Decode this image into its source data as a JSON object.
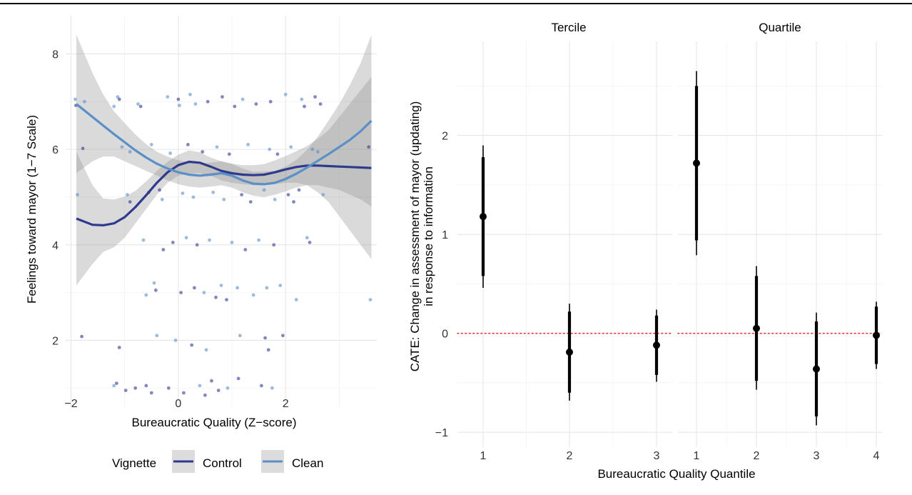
{
  "chart_data": [
    {
      "type": "scatter",
      "title": "",
      "xlabel": "Bureaucratic Quality (Z−score)",
      "ylabel": "Feelings toward mayor (1−7 Scale)",
      "xlim": [
        -2.1,
        3.7
      ],
      "ylim": [
        0.6,
        8.8
      ],
      "x_ticks": [
        {
          "v": -2,
          "label": "−2"
        },
        {
          "v": 0,
          "label": "0"
        },
        {
          "v": 2,
          "label": "2"
        }
      ],
      "y_ticks": [
        {
          "v": 2,
          "label": "2"
        },
        {
          "v": 4,
          "label": "4"
        },
        {
          "v": 6,
          "label": "6"
        },
        {
          "v": 8,
          "label": "8"
        }
      ],
      "grid": true,
      "legend": {
        "title": "Vignette",
        "position": "bottom",
        "entries": [
          {
            "name": "Control",
            "color": "#2e3a8c"
          },
          {
            "name": "Clean",
            "color": "#5b8fc7"
          }
        ]
      },
      "jitter_points": [
        {
          "x": -1.92,
          "y": 7.05
        },
        {
          "x": -1.91,
          "y": 6.92
        },
        {
          "x": -1.88,
          "y": 5.05
        },
        {
          "x": -1.78,
          "y": 6.02
        },
        {
          "x": -1.75,
          "y": 7.0
        },
        {
          "x": -1.8,
          "y": 2.08
        },
        {
          "x": -1.2,
          "y": 1.05
        },
        {
          "x": -1.15,
          "y": 1.1
        },
        {
          "x": -1.13,
          "y": 7.1
        },
        {
          "x": -1.1,
          "y": 7.05
        },
        {
          "x": -1.2,
          "y": 6.9
        },
        {
          "x": -1.1,
          "y": 1.85
        },
        {
          "x": -1.05,
          "y": 6.05
        },
        {
          "x": -0.98,
          "y": 0.95
        },
        {
          "x": -0.95,
          "y": 5.05
        },
        {
          "x": -0.9,
          "y": 4.9
        },
        {
          "x": -0.9,
          "y": 5.95
        },
        {
          "x": -0.8,
          "y": 1.0
        },
        {
          "x": -0.75,
          "y": 6.95
        },
        {
          "x": -0.7,
          "y": 6.9
        },
        {
          "x": -0.65,
          "y": 4.1
        },
        {
          "x": -0.6,
          "y": 1.05
        },
        {
          "x": -0.6,
          "y": 2.95
        },
        {
          "x": -0.55,
          "y": 5.1
        },
        {
          "x": -0.5,
          "y": 6.1
        },
        {
          "x": -0.5,
          "y": 0.9
        },
        {
          "x": -0.45,
          "y": 3.2
        },
        {
          "x": -0.42,
          "y": 3.05
        },
        {
          "x": -0.4,
          "y": 2.1
        },
        {
          "x": -0.35,
          "y": 5.15
        },
        {
          "x": -0.3,
          "y": 4.95
        },
        {
          "x": -0.28,
          "y": 3.9
        },
        {
          "x": -0.2,
          "y": 7.1
        },
        {
          "x": -0.18,
          "y": 1.0
        },
        {
          "x": -0.15,
          "y": 5.92
        },
        {
          "x": -0.1,
          "y": 4.05
        },
        {
          "x": -0.05,
          "y": 2.0
        },
        {
          "x": 0.0,
          "y": 7.05
        },
        {
          "x": 0.02,
          "y": 6.92
        },
        {
          "x": 0.05,
          "y": 3.0
        },
        {
          "x": 0.08,
          "y": 5.08
        },
        {
          "x": 0.1,
          "y": 0.9
        },
        {
          "x": 0.15,
          "y": 4.15
        },
        {
          "x": 0.18,
          "y": 6.1
        },
        {
          "x": 0.22,
          "y": 7.15
        },
        {
          "x": 0.25,
          "y": 1.9
        },
        {
          "x": 0.28,
          "y": 5.0
        },
        {
          "x": 0.3,
          "y": 3.1
        },
        {
          "x": 0.32,
          "y": 6.95
        },
        {
          "x": 0.35,
          "y": 4.0
        },
        {
          "x": 0.4,
          "y": 1.05
        },
        {
          "x": 0.45,
          "y": 5.95
        },
        {
          "x": 0.48,
          "y": 3.0
        },
        {
          "x": 0.5,
          "y": 0.85
        },
        {
          "x": 0.52,
          "y": 1.8
        },
        {
          "x": 0.55,
          "y": 7.0
        },
        {
          "x": 0.58,
          "y": 4.1
        },
        {
          "x": 0.62,
          "y": 1.15
        },
        {
          "x": 0.65,
          "y": 5.1
        },
        {
          "x": 0.7,
          "y": 2.9
        },
        {
          "x": 0.72,
          "y": 6.05
        },
        {
          "x": 0.75,
          "y": 0.95
        },
        {
          "x": 0.8,
          "y": 3.15
        },
        {
          "x": 0.82,
          "y": 7.1
        },
        {
          "x": 0.85,
          "y": 4.95
        },
        {
          "x": 0.9,
          "y": 2.85
        },
        {
          "x": 0.92,
          "y": 1.0
        },
        {
          "x": 0.95,
          "y": 5.9
        },
        {
          "x": 1.0,
          "y": 4.05
        },
        {
          "x": 1.05,
          "y": 6.9
        },
        {
          "x": 1.1,
          "y": 3.1
        },
        {
          "x": 1.12,
          "y": 1.2
        },
        {
          "x": 1.15,
          "y": 2.1
        },
        {
          "x": 1.18,
          "y": 5.05
        },
        {
          "x": 1.2,
          "y": 7.05
        },
        {
          "x": 1.25,
          "y": 3.9
        },
        {
          "x": 1.3,
          "y": 6.1
        },
        {
          "x": 1.35,
          "y": 4.9
        },
        {
          "x": 1.4,
          "y": 2.95
        },
        {
          "x": 1.45,
          "y": 6.95
        },
        {
          "x": 1.5,
          "y": 4.1
        },
        {
          "x": 1.55,
          "y": 1.05
        },
        {
          "x": 1.6,
          "y": 5.15
        },
        {
          "x": 1.62,
          "y": 2.05
        },
        {
          "x": 1.65,
          "y": 3.1
        },
        {
          "x": 1.68,
          "y": 1.8
        },
        {
          "x": 1.7,
          "y": 6.0
        },
        {
          "x": 1.72,
          "y": 7.0
        },
        {
          "x": 1.75,
          "y": 1.0
        },
        {
          "x": 1.78,
          "y": 4.0
        },
        {
          "x": 1.8,
          "y": 4.95
        },
        {
          "x": 1.85,
          "y": 5.9
        },
        {
          "x": 1.9,
          "y": 3.15
        },
        {
          "x": 1.95,
          "y": 2.1
        },
        {
          "x": 2.0,
          "y": 7.15
        },
        {
          "x": 2.05,
          "y": 5.05
        },
        {
          "x": 2.1,
          "y": 6.05
        },
        {
          "x": 2.15,
          "y": 4.9
        },
        {
          "x": 2.2,
          "y": 2.85
        },
        {
          "x": 2.25,
          "y": 5.15
        },
        {
          "x": 2.3,
          "y": 7.05
        },
        {
          "x": 2.35,
          "y": 6.9
        },
        {
          "x": 2.4,
          "y": 4.15
        },
        {
          "x": 2.45,
          "y": 4.05
        },
        {
          "x": 2.5,
          "y": 6.0
        },
        {
          "x": 2.55,
          "y": 7.1
        },
        {
          "x": 2.6,
          "y": 5.95
        },
        {
          "x": 2.65,
          "y": 6.95
        },
        {
          "x": 2.7,
          "y": 5.05
        },
        {
          "x": 3.55,
          "y": 6.05
        },
        {
          "x": 3.58,
          "y": 2.85
        }
      ],
      "series": [
        {
          "name": "Control",
          "x": [
            -1.9,
            -1.6,
            -1.4,
            -1.2,
            -1.0,
            -0.8,
            -0.6,
            -0.4,
            -0.2,
            0.0,
            0.2,
            0.4,
            0.6,
            0.8,
            1.0,
            1.2,
            1.4,
            1.6,
            1.8,
            2.0,
            2.2,
            2.4,
            2.6,
            2.8,
            3.0,
            3.2,
            3.4,
            3.6
          ],
          "y": [
            4.55,
            4.42,
            4.41,
            4.45,
            4.58,
            4.79,
            5.04,
            5.3,
            5.52,
            5.67,
            5.74,
            5.72,
            5.64,
            5.55,
            5.5,
            5.47,
            5.46,
            5.47,
            5.52,
            5.58,
            5.63,
            5.66,
            5.66,
            5.65,
            5.64,
            5.63,
            5.62,
            5.61
          ],
          "ci_low": [
            3.15,
            3.6,
            3.85,
            3.95,
            4.15,
            4.45,
            4.75,
            5.05,
            5.3,
            5.45,
            5.5,
            5.5,
            5.45,
            5.35,
            5.3,
            5.27,
            5.25,
            5.25,
            5.27,
            5.3,
            5.3,
            5.25,
            5.1,
            4.9,
            4.6,
            4.3,
            4.0,
            3.7
          ],
          "ci_high": [
            5.95,
            5.25,
            4.97,
            4.95,
            5.01,
            5.13,
            5.33,
            5.55,
            5.74,
            5.89,
            5.98,
            5.94,
            5.83,
            5.75,
            5.7,
            5.67,
            5.67,
            5.69,
            5.77,
            5.86,
            5.96,
            6.07,
            6.22,
            6.4,
            6.68,
            6.96,
            7.24,
            7.52
          ],
          "color": "#2e3a8c"
        },
        {
          "name": "Clean",
          "x": [
            -1.9,
            -1.6,
            -1.4,
            -1.2,
            -1.0,
            -0.8,
            -0.6,
            -0.4,
            -0.2,
            0.0,
            0.2,
            0.4,
            0.6,
            0.8,
            1.0,
            1.2,
            1.4,
            1.6,
            1.8,
            2.0,
            2.2,
            2.4,
            2.6,
            2.8,
            3.0,
            3.2,
            3.4,
            3.6
          ],
          "y": [
            6.95,
            6.68,
            6.5,
            6.32,
            6.15,
            5.98,
            5.83,
            5.7,
            5.6,
            5.52,
            5.47,
            5.45,
            5.47,
            5.5,
            5.45,
            5.35,
            5.28,
            5.27,
            5.3,
            5.38,
            5.49,
            5.62,
            5.76,
            5.9,
            6.05,
            6.2,
            6.38,
            6.6
          ],
          "ci_low": [
            5.5,
            5.75,
            5.85,
            5.85,
            5.75,
            5.65,
            5.55,
            5.45,
            5.35,
            5.27,
            5.22,
            5.2,
            5.22,
            5.25,
            5.2,
            5.1,
            5.03,
            5.0,
            5.05,
            5.12,
            5.2,
            5.25,
            5.25,
            5.2,
            5.15,
            5.05,
            4.95,
            4.8
          ],
          "ci_high": [
            8.4,
            7.6,
            7.15,
            6.8,
            6.55,
            6.31,
            6.11,
            5.95,
            5.85,
            5.77,
            5.72,
            5.7,
            5.72,
            5.75,
            5.7,
            5.6,
            5.53,
            5.54,
            5.55,
            5.64,
            5.78,
            5.99,
            6.27,
            6.6,
            6.95,
            7.35,
            7.81,
            8.4
          ],
          "color": "#5b8fc7"
        }
      ]
    },
    {
      "type": "scatter",
      "title": "",
      "ylabel_line1": "CATE: Change in assessment of mayor (updating)",
      "ylabel_line2": "in response to information",
      "xlabel": "Bureaucratic Quality Quantile",
      "ylim": [
        -1.15,
        2.95
      ],
      "y_ticks": [
        {
          "v": -1,
          "label": "−1"
        },
        {
          "v": 0,
          "label": "0"
        },
        {
          "v": 1,
          "label": "1"
        },
        {
          "v": 2,
          "label": "2"
        }
      ],
      "reference_line": {
        "y": 0,
        "color": "#e0313a",
        "style": "dotted"
      },
      "grid": true,
      "facets": [
        {
          "label": "Tercile",
          "categories": [
            "1",
            "2",
            "3"
          ],
          "points": [
            {
              "x": "1",
              "estimate": 1.18,
              "ci90": [
                0.58,
                1.78
              ],
              "ci95": [
                0.46,
                1.9
              ]
            },
            {
              "x": "2",
              "estimate": -0.19,
              "ci90": [
                -0.6,
                0.22
              ],
              "ci95": [
                -0.68,
                0.3
              ]
            },
            {
              "x": "3",
              "estimate": -0.12,
              "ci90": [
                -0.42,
                0.18
              ],
              "ci95": [
                -0.49,
                0.24
              ]
            }
          ]
        },
        {
          "label": "Quartile",
          "categories": [
            "1",
            "2",
            "3",
            "4"
          ],
          "points": [
            {
              "x": "1",
              "estimate": 1.72,
              "ci90": [
                0.94,
                2.5
              ],
              "ci95": [
                0.79,
                2.65
              ]
            },
            {
              "x": "2",
              "estimate": 0.05,
              "ci90": [
                -0.48,
                0.58
              ],
              "ci95": [
                -0.57,
                0.68
              ]
            },
            {
              "x": "3",
              "estimate": -0.36,
              "ci90": [
                -0.84,
                0.12
              ],
              "ci95": [
                -0.93,
                0.21
              ]
            },
            {
              "x": "4",
              "estimate": -0.02,
              "ci90": [
                -0.31,
                0.27
              ],
              "ci95": [
                -0.36,
                0.32
              ]
            }
          ]
        }
      ]
    }
  ]
}
